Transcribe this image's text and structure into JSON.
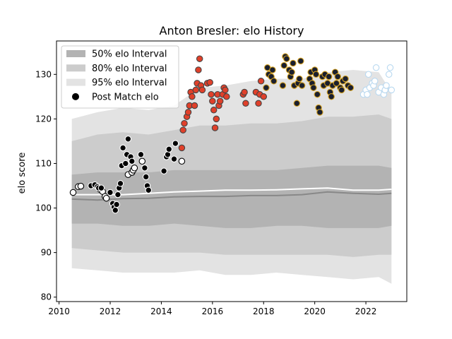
{
  "chart_data": {
    "type": "scatter",
    "title": "Anton Bresler: elo History",
    "xlabel": "",
    "ylabel": "elo score",
    "xlim": [
      2009.9,
      2023.6
    ],
    "ylim": [
      79,
      137.5
    ],
    "x_ticks": [
      2010,
      2012,
      2014,
      2016,
      2018,
      2020,
      2022
    ],
    "y_ticks": [
      80,
      90,
      100,
      110,
      120,
      130
    ],
    "grid": false,
    "legend_position": "upper-left",
    "legend": [
      {
        "label": "50% elo Interval",
        "swatch": "band",
        "color": "#b3b3b3"
      },
      {
        "label": "80% elo Interval",
        "swatch": "band",
        "color": "#cccccc"
      },
      {
        "label": "95% elo Interval",
        "swatch": "band",
        "color": "#e3e3e3"
      },
      {
        "label": "Post Match elo",
        "swatch": "dot",
        "color": "#000000"
      }
    ],
    "bands": {
      "x": [
        2010.5,
        2011.5,
        2012.5,
        2013.5,
        2014.5,
        2015.5,
        2016.5,
        2017.5,
        2018.5,
        2019.5,
        2020.5,
        2021.5,
        2022.5,
        2023.0
      ],
      "p95": {
        "color": "#e3e3e3",
        "upper": [
          120,
          121.5,
          122.5,
          122,
          123,
          127,
          127.5,
          128.5,
          129,
          129,
          130.5,
          131,
          130.5,
          126
        ],
        "lower": [
          86.5,
          86,
          85.5,
          85.5,
          85.5,
          86,
          85,
          85,
          85.5,
          85,
          84.5,
          84,
          84.5,
          83
        ]
      },
      "p80": {
        "color": "#cccccc",
        "upper": [
          115,
          116.5,
          117,
          116.5,
          117.5,
          118.5,
          118.5,
          119,
          119,
          119.5,
          120.5,
          120.5,
          121,
          120
        ],
        "lower": [
          91,
          90.5,
          90,
          90,
          90,
          90,
          89.5,
          89.5,
          89.5,
          89.5,
          89.5,
          89,
          89.5,
          89.5
        ]
      },
      "p50": {
        "color": "#b3b3b3",
        "upper": [
          107.5,
          108,
          108,
          108,
          108.5,
          108.5,
          108.5,
          108.5,
          108.5,
          109,
          109.5,
          109.5,
          109.5,
          109
        ],
        "lower": [
          96.5,
          96.5,
          96,
          96,
          96.5,
          96,
          95.5,
          95.5,
          96,
          96,
          95.5,
          95.5,
          95.5,
          96
        ]
      }
    },
    "lines": [
      {
        "color": "#ffffff",
        "x": [
          2010.5,
          2011.5,
          2012.5,
          2013.5,
          2014.5,
          2015.5,
          2016.5,
          2017.5,
          2018.5,
          2019.5,
          2020.5,
          2021.5,
          2022.5,
          2023.0
        ],
        "y": [
          103.0,
          103.0,
          103.0,
          103.3,
          103.6,
          103.8,
          104.0,
          104.0,
          104.1,
          104.3,
          104.5,
          104.0,
          104.0,
          104.2
        ]
      },
      {
        "color": "#888888",
        "x": [
          2010.5,
          2011.5,
          2012.5,
          2013.5,
          2014.5,
          2015.5,
          2016.5,
          2017.5,
          2018.5,
          2019.5,
          2020.5,
          2021.5,
          2022.5,
          2023.0
        ],
        "y": [
          102.0,
          101.8,
          102.1,
          102.2,
          102.5,
          102.6,
          102.6,
          102.8,
          102.8,
          103.0,
          103.6,
          103.3,
          103.1,
          103.3
        ]
      }
    ],
    "series": [
      {
        "fill": "#ffffff",
        "stroke": "#000000",
        "points": [
          [
            2010.55,
            103.5
          ],
          [
            2010.75,
            104.8
          ],
          [
            2010.85,
            104.9
          ],
          [
            2011.6,
            104.2
          ],
          [
            2011.7,
            103.7
          ],
          [
            2011.8,
            102.6
          ],
          [
            2011.85,
            102.2
          ],
          [
            2012.7,
            107.5
          ],
          [
            2012.85,
            108.0
          ],
          [
            2012.9,
            108.5
          ],
          [
            2012.95,
            109.0
          ],
          [
            2013.25,
            110.5
          ],
          [
            2014.8,
            110.5
          ]
        ]
      },
      {
        "fill": "#000000",
        "stroke": "#ffffff",
        "points": [
          [
            2011.25,
            105.0
          ],
          [
            2011.4,
            105.2
          ],
          [
            2011.5,
            104.8
          ],
          [
            2011.55,
            104.5
          ],
          [
            2011.65,
            104.5
          ],
          [
            2012.0,
            103.5
          ],
          [
            2012.1,
            101.0
          ],
          [
            2012.15,
            100.2
          ],
          [
            2012.2,
            99.5
          ],
          [
            2012.25,
            100.8
          ],
          [
            2012.3,
            103.0
          ],
          [
            2012.35,
            104.5
          ],
          [
            2012.4,
            105.5
          ],
          [
            2012.45,
            109.5
          ],
          [
            2012.5,
            113.5
          ],
          [
            2012.6,
            110.0
          ],
          [
            2012.65,
            112.0
          ],
          [
            2012.7,
            115.5
          ],
          [
            2012.8,
            111.5
          ],
          [
            2012.85,
            110.5
          ],
          [
            2013.2,
            112.0
          ],
          [
            2013.35,
            109.0
          ],
          [
            2013.4,
            107.0
          ],
          [
            2013.45,
            105.0
          ],
          [
            2013.5,
            104.0
          ],
          [
            2014.1,
            108.3
          ],
          [
            2014.2,
            111.5
          ],
          [
            2014.25,
            112.0
          ],
          [
            2014.3,
            113.2
          ],
          [
            2014.5,
            111.0
          ],
          [
            2014.55,
            114.5
          ]
        ]
      },
      {
        "fill": "#e0402a",
        "stroke": "#444444",
        "points": [
          [
            2014.8,
            113.5
          ],
          [
            2014.85,
            117.5
          ],
          [
            2014.9,
            119.0
          ],
          [
            2015.0,
            120.5
          ],
          [
            2015.05,
            121.5
          ],
          [
            2015.1,
            123.0
          ],
          [
            2015.15,
            126.0
          ],
          [
            2015.2,
            125.0
          ],
          [
            2015.3,
            123.0
          ],
          [
            2015.35,
            126.5
          ],
          [
            2015.4,
            128.0
          ],
          [
            2015.45,
            131.0
          ],
          [
            2015.5,
            133.5
          ],
          [
            2015.55,
            127.5
          ],
          [
            2015.6,
            126.5
          ],
          [
            2015.8,
            128.0
          ],
          [
            2015.9,
            128.2
          ],
          [
            2015.95,
            125.5
          ],
          [
            2016.0,
            124.0
          ],
          [
            2016.05,
            122.0
          ],
          [
            2016.1,
            118.0
          ],
          [
            2016.15,
            120.0
          ],
          [
            2016.2,
            125.5
          ],
          [
            2016.25,
            123.0
          ],
          [
            2016.3,
            124.0
          ],
          [
            2016.4,
            125.5
          ],
          [
            2016.45,
            127.0
          ],
          [
            2016.5,
            126.5
          ],
          [
            2016.55,
            125.0
          ],
          [
            2017.2,
            125.5
          ],
          [
            2017.25,
            126.0
          ],
          [
            2017.3,
            123.5
          ],
          [
            2017.7,
            126.0
          ],
          [
            2017.8,
            123.5
          ],
          [
            2017.85,
            125.5
          ],
          [
            2017.9,
            128.5
          ],
          [
            2018.0,
            125.0
          ]
        ]
      },
      {
        "fill": "#1a1f2e",
        "stroke": "#d4a020",
        "points": [
          [
            2018.1,
            127.0
          ],
          [
            2018.15,
            131.5
          ],
          [
            2018.2,
            130.0
          ],
          [
            2018.3,
            129.5
          ],
          [
            2018.35,
            131.0
          ],
          [
            2018.4,
            128.5
          ],
          [
            2018.75,
            127.5
          ],
          [
            2018.8,
            132.0
          ],
          [
            2018.85,
            134.0
          ],
          [
            2018.9,
            133.5
          ],
          [
            2019.0,
            131.0
          ],
          [
            2019.05,
            129.5
          ],
          [
            2019.1,
            130.5
          ],
          [
            2019.15,
            132.5
          ],
          [
            2019.2,
            127.5
          ],
          [
            2019.3,
            123.5
          ],
          [
            2019.35,
            128.0
          ],
          [
            2019.4,
            129.0
          ],
          [
            2019.45,
            133.0
          ],
          [
            2019.5,
            127.5
          ],
          [
            2019.8,
            129.0
          ],
          [
            2019.85,
            130.5
          ],
          [
            2019.9,
            128.0
          ],
          [
            2019.95,
            127.0
          ],
          [
            2020.0,
            131.0
          ],
          [
            2020.05,
            130.0
          ],
          [
            2020.1,
            125.5
          ],
          [
            2020.15,
            122.5
          ],
          [
            2020.2,
            121.5
          ],
          [
            2020.3,
            129.5
          ],
          [
            2020.35,
            127.5
          ],
          [
            2020.4,
            130.0
          ],
          [
            2020.5,
            128.0
          ],
          [
            2020.55,
            129.5
          ],
          [
            2020.6,
            126.0
          ],
          [
            2020.65,
            125.0
          ],
          [
            2020.7,
            127.5
          ],
          [
            2020.8,
            130.5
          ],
          [
            2020.85,
            128.0
          ],
          [
            2020.9,
            129.5
          ],
          [
            2021.0,
            127.0
          ],
          [
            2021.05,
            126.5
          ],
          [
            2021.1,
            128.5
          ],
          [
            2021.2,
            129.0
          ],
          [
            2021.3,
            127.5
          ],
          [
            2021.4,
            127.0
          ]
        ]
      },
      {
        "fill": "#ffffff",
        "stroke": "#b8d8f0",
        "points": [
          [
            2021.9,
            125.5
          ],
          [
            2022.0,
            126.5
          ],
          [
            2022.05,
            125.5
          ],
          [
            2022.1,
            130.0
          ],
          [
            2022.15,
            127.0
          ],
          [
            2022.25,
            128.0
          ],
          [
            2022.3,
            127.5
          ],
          [
            2022.35,
            128.5
          ],
          [
            2022.4,
            131.5
          ],
          [
            2022.5,
            126.0
          ],
          [
            2022.6,
            127.0
          ],
          [
            2022.7,
            125.5
          ],
          [
            2022.75,
            126.5
          ],
          [
            2022.8,
            127.5
          ],
          [
            2022.9,
            130.0
          ],
          [
            2022.95,
            131.5
          ],
          [
            2023.0,
            126.5
          ]
        ]
      }
    ]
  }
}
